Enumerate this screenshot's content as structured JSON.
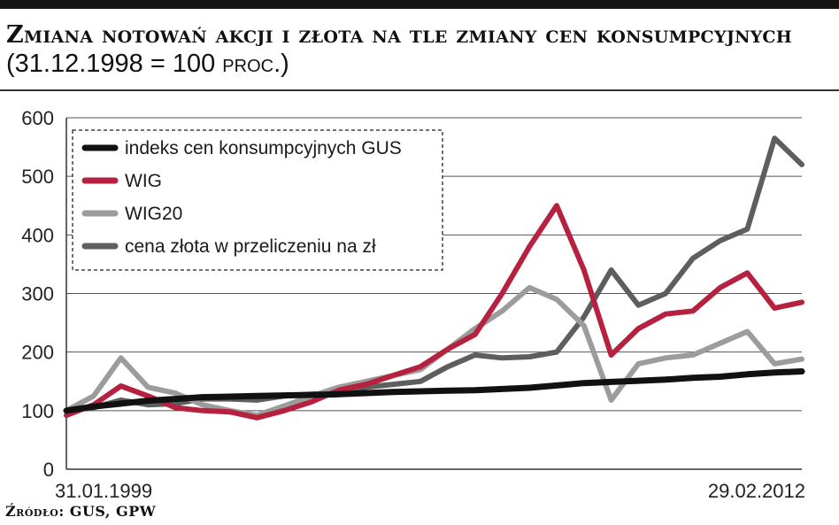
{
  "header": {
    "title_main": "Zmiana notowań akcji i złota na tle zmiany cen konsumpcyjnych",
    "title_paren_open": "(31.12.1998 = 100 ",
    "title_unit": "proc.",
    "title_paren_close": ")"
  },
  "footer": {
    "source": "Źródło: GUS, GPW"
  },
  "chart_data": {
    "type": "line",
    "title": "Zmiana notowań akcji i złota na tle zmiany cen konsumpcyjnych (31.12.1998 = 100 proc.)",
    "xlabel": "",
    "ylabel": "",
    "x_start_label": "31.01.1999",
    "x_end_label": "29.02.2012",
    "x_range": [
      "1999-01",
      "2012-02"
    ],
    "ylim": [
      0,
      600
    ],
    "yticks": [
      0,
      100,
      200,
      300,
      400,
      500,
      600
    ],
    "grid": "horizontal",
    "legend_position": "top-left",
    "x": [
      "1999-01",
      "1999-07",
      "2000-01",
      "2000-07",
      "2001-01",
      "2001-07",
      "2002-01",
      "2002-07",
      "2003-01",
      "2003-07",
      "2004-01",
      "2004-07",
      "2005-01",
      "2005-07",
      "2006-01",
      "2006-07",
      "2007-01",
      "2007-07",
      "2008-01",
      "2008-07",
      "2009-01",
      "2009-07",
      "2010-01",
      "2010-07",
      "2011-01",
      "2011-07",
      "2012-01",
      "2012-02"
    ],
    "series": [
      {
        "name": "indeks cen konsumpcyjnych GUS",
        "color": "#111111",
        "values": [
          100,
          107,
          112,
          117,
          120,
          123,
          124,
          125,
          126,
          127,
          128,
          130,
          132,
          133,
          134,
          135,
          137,
          139,
          143,
          147,
          149,
          151,
          153,
          156,
          158,
          162,
          165,
          167
        ]
      },
      {
        "name": "WIG",
        "color": "#b5213e",
        "values": [
          92,
          110,
          142,
          125,
          105,
          100,
          98,
          88,
          100,
          115,
          135,
          145,
          160,
          175,
          205,
          230,
          300,
          380,
          450,
          340,
          195,
          240,
          265,
          270,
          310,
          335,
          275,
          285
        ]
      },
      {
        "name": "WIG20",
        "color": "#9c9c9c",
        "values": [
          100,
          125,
          190,
          140,
          130,
          110,
          100,
          92,
          108,
          125,
          140,
          150,
          160,
          170,
          205,
          240,
          270,
          310,
          290,
          245,
          118,
          180,
          190,
          195,
          215,
          235,
          180,
          188
        ]
      },
      {
        "name": "cena złota w przeliczeniu na zł",
        "color": "#5e5e5e",
        "values": [
          100,
          105,
          118,
          110,
          112,
          120,
          120,
          118,
          125,
          128,
          130,
          140,
          145,
          150,
          175,
          195,
          190,
          192,
          200,
          260,
          340,
          280,
          300,
          360,
          390,
          410,
          565,
          520
        ]
      }
    ]
  }
}
